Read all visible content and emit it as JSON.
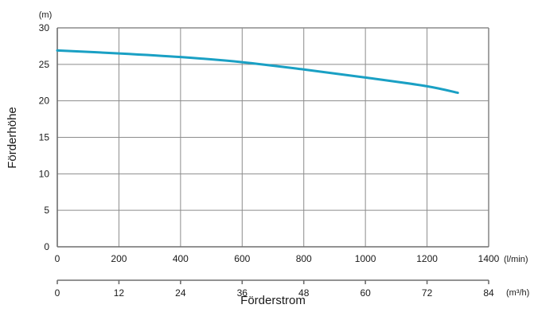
{
  "chart_data": {
    "type": "line",
    "ylabel": "Förderhöhe",
    "xlabel": "Förderstrom",
    "y_unit": "(m)",
    "x_unit_primary": "(l/min)",
    "x_unit_secondary": "(m³/h)",
    "ylim": [
      0,
      30
    ],
    "xlim": [
      0,
      1400
    ],
    "xlim_secondary": [
      0,
      84
    ],
    "y_ticks": [
      "0",
      "5",
      "10",
      "15",
      "20",
      "25",
      "30"
    ],
    "x_ticks_primary": [
      "0",
      "200",
      "400",
      "600",
      "800",
      "1000",
      "1200",
      "1400"
    ],
    "x_ticks_secondary": [
      "0",
      "12",
      "24",
      "36",
      "48",
      "60",
      "72",
      "84"
    ],
    "grid": true,
    "series": [
      {
        "color": "#1aa0c4",
        "x": [
          0,
          200,
          400,
          600,
          800,
          1000,
          1200,
          1300
        ],
        "y": [
          26.9,
          26.5,
          26.0,
          25.3,
          24.3,
          23.2,
          22.0,
          21.1
        ]
      }
    ]
  }
}
